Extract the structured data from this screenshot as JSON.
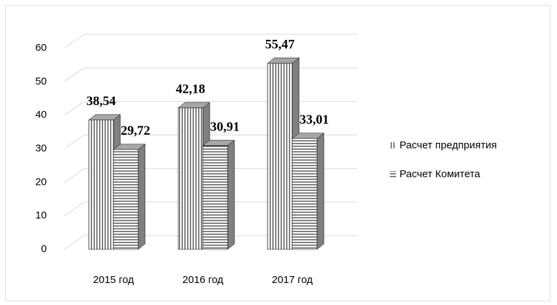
{
  "chart_data": {
    "type": "bar3d",
    "categories": [
      "2015 год",
      "2016 год",
      "2017 год"
    ],
    "series": [
      {
        "name": "Расчет предприятия",
        "color": "#000000",
        "pattern": "vertical",
        "values": [
          38.54,
          42.18,
          55.47
        ],
        "value_labels": [
          "38,54",
          "42,18",
          "55,47"
        ]
      },
      {
        "name": "Расчет Комитета",
        "color": "#000000",
        "pattern": "horizontal",
        "values": [
          29.72,
          30.91,
          33.01
        ],
        "value_labels": [
          "29,72",
          "30,91",
          "33,01"
        ]
      }
    ],
    "ylim": [
      0,
      60
    ],
    "yticks": [
      0,
      10,
      20,
      30,
      40,
      50,
      60
    ],
    "grid": true,
    "legend": "right"
  }
}
